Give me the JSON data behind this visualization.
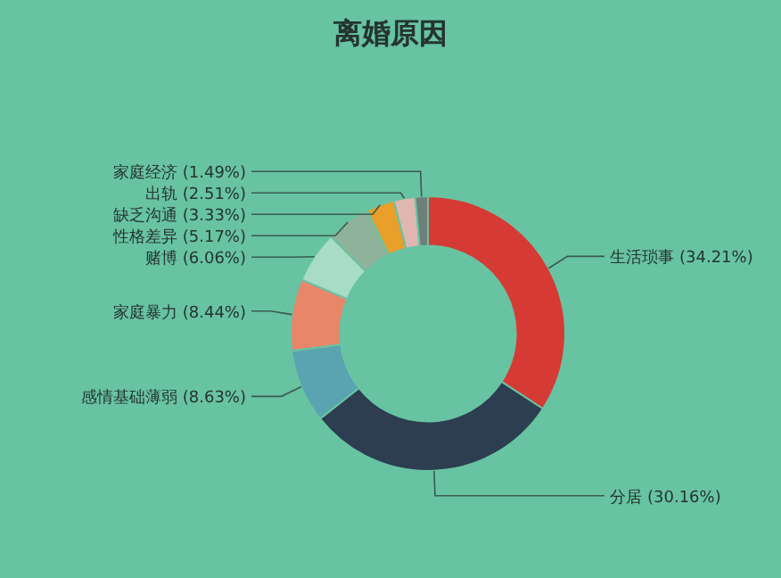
{
  "chart_data": {
    "type": "donut",
    "title": "离婚原因",
    "categories": [
      "生活琐事",
      "分居",
      "感情基础薄弱",
      "家庭暴力",
      "赌博",
      "性格差异",
      "缺乏沟通",
      "出轨",
      "家庭经济"
    ],
    "values": [
      34.21,
      30.16,
      8.63,
      8.44,
      6.06,
      5.17,
      3.33,
      2.51,
      1.49
    ],
    "colors": [
      "#d63a34",
      "#2d3e50",
      "#5aa3b0",
      "#e8866a",
      "#a8dcc6",
      "#8fb39a",
      "#e8a02a",
      "#e0b7b0",
      "#6e7f7a"
    ],
    "value_labels": [
      "(34.21%)",
      "(30.16%)",
      "(8.63%)",
      "(8.44%)",
      "(6.06%)",
      "(5.17%)",
      "(3.33%)",
      "(2.51%)",
      "(1.49%)"
    ]
  }
}
